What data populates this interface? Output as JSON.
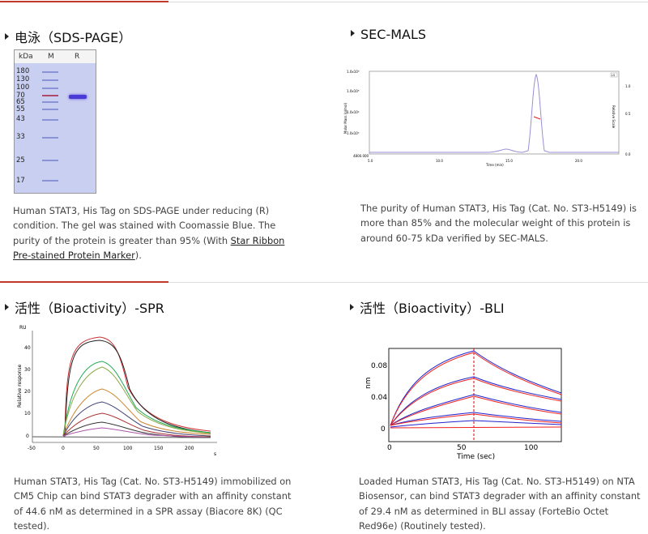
{
  "sections": [
    {
      "title": "电泳（SDS-PAGE）",
      "desc_before": "Human STAT3, His Tag on SDS-PAGE under reducing (R) condition. The gel was stained with Coomassie Blue. The purity of the protein is greater than 95% (With ",
      "desc_link": "Star Ribbon Pre-stained Protein Marker",
      "desc_after": ")."
    },
    {
      "title": "SEC-MALS",
      "desc": "The purity of Human STAT3, His Tag (Cat. No. ST3-H5149) is more than 85% and the molecular weight of this protein is around 60-75 kDa verified by SEC-MALS."
    },
    {
      "title": "活性（Bioactivity）-SPR",
      "desc": "Human STAT3, His Tag (Cat. No. ST3-H5149) immobilized on CM5 Chip can bind STAT3 degrader with an affinity constant of 44.6 nM as determined in a SPR assay (Biacore 8K) (QC tested)."
    },
    {
      "title": "活性（Bioactivity）-BLI",
      "desc": "Loaded Human STAT3, His Tag (Cat. No. ST3-H5149) on NTA Biosensor, can bind STAT3 degrader with an affinity constant of 29.4 nM as determined in BLI assay (ForteBio Octet Red96e) (Routinely tested)."
    }
  ],
  "gel": {
    "headers": [
      "kDa",
      "M",
      "R"
    ],
    "markers": [
      "180",
      "130",
      "100",
      "70",
      "65",
      "55",
      "43",
      "33",
      "25",
      "17"
    ]
  },
  "sec_mals": {
    "xlabel": "Time (min)",
    "ylabel_left": "Molar Mass (g/mol)",
    "ylabel_right": "Relative Scale",
    "x_ticks": [
      "5.0",
      "10.0",
      "15.0",
      "20.0"
    ],
    "y_ticks": [
      "1.0x10⁶",
      "1.0x10⁵",
      "1.0x10⁴",
      "1.0x10³",
      "4800.000"
    ],
    "right_ticks": [
      "1.0",
      "0.5",
      "0.0"
    ],
    "legend": "LS"
  },
  "spr": {
    "xlabel": "s",
    "ylabel": "Relative response",
    "yunit": "RU",
    "x_ticks": [
      "-50",
      "0",
      "50",
      "100",
      "150",
      "200",
      "250"
    ],
    "y_ticks": [
      "0",
      "10",
      "20",
      "30",
      "40"
    ]
  },
  "bli": {
    "xlabel": "Time (sec)",
    "ylabel": "nm",
    "x_ticks": [
      "0",
      "50",
      "100"
    ],
    "y_ticks": [
      "0",
      "0.04",
      "0.08"
    ]
  },
  "colors": {
    "accent": "#c0392b",
    "gel_bg": "#c9cff0",
    "band": "#4a3bd6"
  }
}
